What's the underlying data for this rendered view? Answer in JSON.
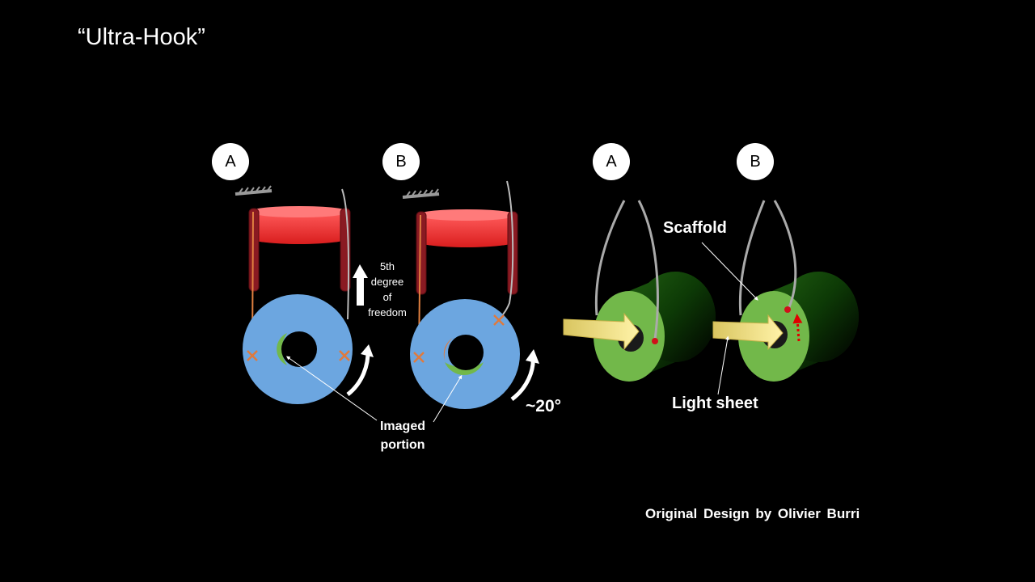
{
  "title": "“Ultra-Hook”",
  "badges": [
    "A",
    "B",
    "A",
    "B"
  ],
  "labels": {
    "fifth_degree": [
      "5th",
      "degree",
      "of",
      "freedom"
    ],
    "imaged_portion": [
      "Imaged",
      "portion"
    ],
    "angle": "~20°",
    "scaffold": "Scaffold",
    "light_sheet": "Light sheet"
  },
  "credit": "Original  Design  by Olivier  Burri",
  "colors": {
    "background": "#000000",
    "ring": "#6ca6e0",
    "cylinder": "#f03838",
    "scaffold": "#72b84a",
    "orange": "#e07a3c",
    "light_beam": "#f2e27a"
  }
}
